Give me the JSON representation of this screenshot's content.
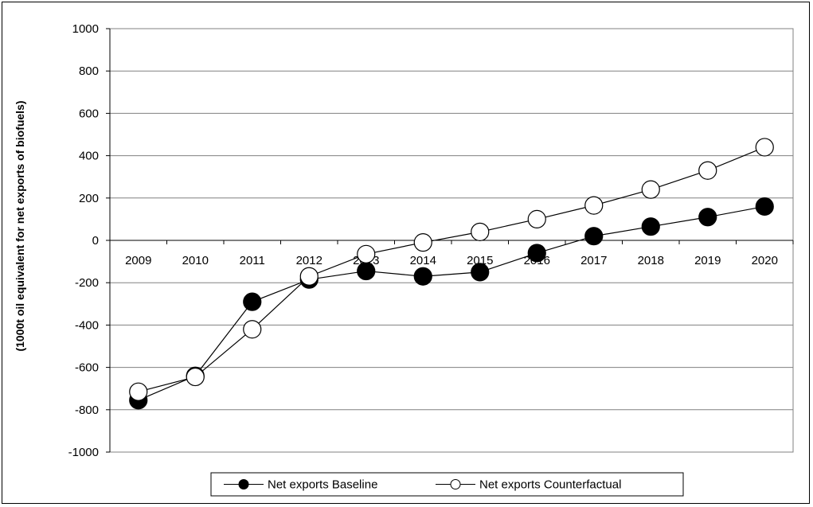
{
  "chart_data": {
    "type": "line",
    "title": "",
    "xlabel": "",
    "ylabel": "(1000t oil equivalent for net exports of biofuels)",
    "categories": [
      "2009",
      "2010",
      "2011",
      "2012",
      "2013",
      "2014",
      "2015",
      "2016",
      "2017",
      "2018",
      "2019",
      "2020"
    ],
    "ylim": [
      -1000,
      1000
    ],
    "yticks": [
      "1000",
      "800",
      "600",
      "400",
      "200",
      "0",
      "-200",
      "-400",
      "-600",
      "-800",
      "-1000"
    ],
    "ytick_values": [
      1000,
      800,
      600,
      400,
      200,
      0,
      -200,
      -400,
      -600,
      -800,
      -1000
    ],
    "grid": true,
    "legend_position": "bottom",
    "series": [
      {
        "name": "Net exports Baseline",
        "marker": "filled-circle",
        "color": "#000000",
        "values": [
          -755,
          -640,
          -290,
          -185,
          -145,
          -170,
          -150,
          -60,
          20,
          65,
          110,
          160
        ]
      },
      {
        "name": "Net exports Counterfactual",
        "marker": "open-circle",
        "color": "#000000",
        "values": [
          -715,
          -645,
          -420,
          -170,
          -65,
          -10,
          40,
          100,
          165,
          240,
          330,
          440
        ]
      }
    ]
  }
}
